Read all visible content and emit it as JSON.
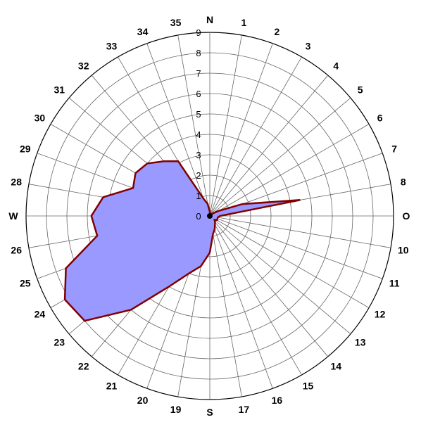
{
  "chart_data": {
    "type": "radar",
    "title": "",
    "directions": [
      "N",
      "1",
      "2",
      "3",
      "4",
      "5",
      "6",
      "7",
      "8",
      "O",
      "10",
      "11",
      "12",
      "13",
      "14",
      "15",
      "16",
      "17",
      "S",
      "19",
      "20",
      "21",
      "22",
      "23",
      "24",
      "25",
      "26",
      "W",
      "28",
      "29",
      "30",
      "31",
      "32",
      "33",
      "34",
      "35"
    ],
    "rlim": [
      0,
      9
    ],
    "rticks": [
      0,
      1,
      2,
      3,
      4,
      5,
      6,
      7,
      8,
      9
    ],
    "series": [
      {
        "values": [
          0.2,
          0.1,
          0.1,
          0.1,
          0.1,
          0.2,
          0.5,
          1.7,
          4.5,
          0.5,
          0.4,
          0.4,
          0.4,
          0.3,
          0.4,
          0.5,
          0.7,
          0.9,
          1.8,
          2.5,
          3.0,
          4.0,
          6.0,
          8.0,
          8.2,
          7.5,
          5.6,
          5.8,
          5.3,
          4.0,
          4.2,
          4.0,
          3.5,
          3.1,
          0.9,
          0.6
        ],
        "fill": "#9999ff",
        "stroke": "#800000"
      }
    ],
    "grid": true,
    "background": "#ffffff"
  }
}
